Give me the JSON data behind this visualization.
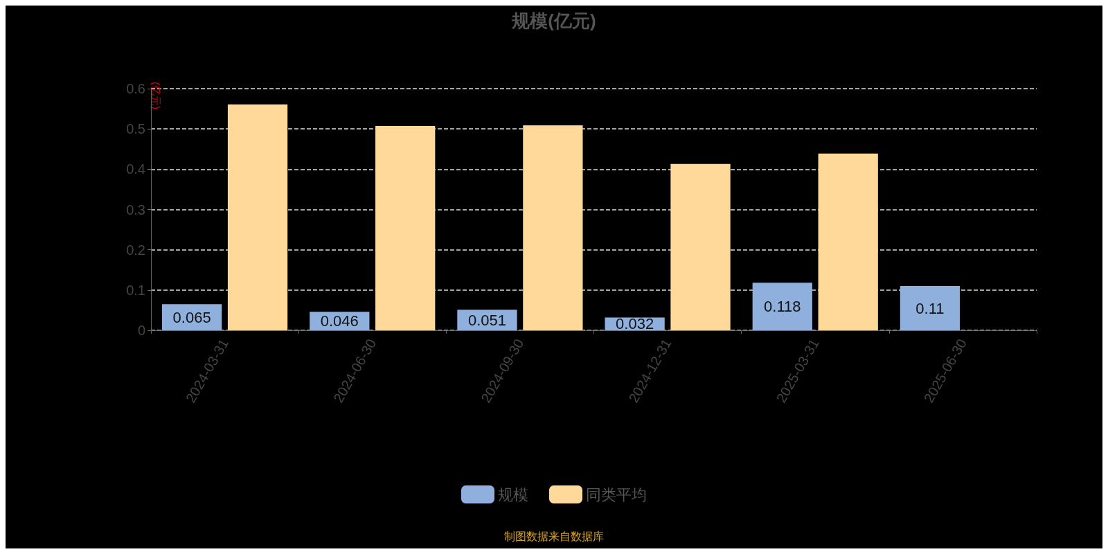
{
  "chart_data": {
    "type": "bar",
    "title": "规模(亿元)",
    "ylabel": "(亿元)",
    "categories": [
      "2024-03-31",
      "2024-06-30",
      "2024-09-30",
      "2024-12-31",
      "2025-03-31",
      "2025-06-30"
    ],
    "series": [
      {
        "name": "规模",
        "color": "#8fb0dc",
        "values": [
          0.065,
          0.046,
          0.051,
          0.032,
          0.118,
          0.11
        ],
        "value_labels": [
          "0.065",
          "0.046",
          "0.051",
          "0.032",
          "0.118",
          "0.11"
        ]
      },
      {
        "name": "同类平均",
        "color": "#ffd99a",
        "values": [
          0.561,
          0.507,
          0.509,
          0.413,
          0.439,
          null
        ]
      }
    ],
    "ylim": [
      0,
      0.6
    ],
    "yticks": [
      0,
      0.1,
      0.2,
      0.3,
      0.4,
      0.5,
      0.6
    ],
    "grid": "y",
    "legend": "bottom",
    "annotations": [
      "制图数据来自数据库"
    ]
  }
}
